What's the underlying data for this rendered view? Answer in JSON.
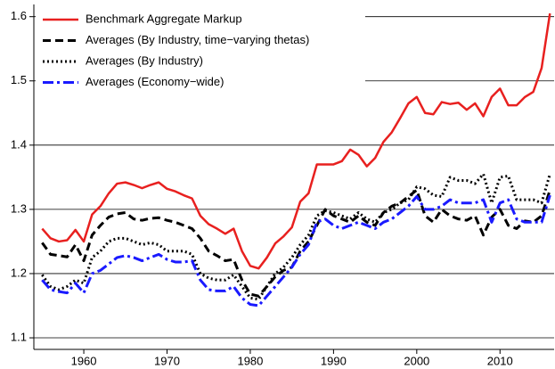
{
  "chart_data": {
    "type": "line",
    "x": [
      1955,
      1956,
      1957,
      1958,
      1959,
      1960,
      1961,
      1962,
      1963,
      1964,
      1965,
      1966,
      1967,
      1968,
      1969,
      1970,
      1971,
      1972,
      1973,
      1974,
      1975,
      1976,
      1977,
      1978,
      1979,
      1980,
      1981,
      1982,
      1983,
      1984,
      1985,
      1986,
      1987,
      1988,
      1989,
      1990,
      1991,
      1992,
      1993,
      1994,
      1995,
      1996,
      1997,
      1998,
      1999,
      2000,
      2001,
      2002,
      2003,
      2004,
      2005,
      2006,
      2007,
      2008,
      2009,
      2010,
      2011,
      2012,
      2013,
      2014,
      2015,
      2016
    ],
    "series": [
      {
        "name": "Benchmark Aggregate Markup",
        "color": "#e8201f",
        "dash": "solid",
        "values": [
          1.27,
          1.255,
          1.25,
          1.252,
          1.268,
          1.25,
          1.292,
          1.305,
          1.325,
          1.34,
          1.342,
          1.338,
          1.333,
          1.338,
          1.342,
          1.332,
          1.328,
          1.322,
          1.317,
          1.29,
          1.277,
          1.27,
          1.262,
          1.27,
          1.235,
          1.212,
          1.208,
          1.225,
          1.247,
          1.258,
          1.272,
          1.312,
          1.325,
          1.37,
          1.37,
          1.37,
          1.375,
          1.393,
          1.385,
          1.367,
          1.38,
          1.405,
          1.42,
          1.442,
          1.465,
          1.475,
          1.45,
          1.448,
          1.467,
          1.464,
          1.466,
          1.455,
          1.465,
          1.445,
          1.475,
          1.488,
          1.462,
          1.462,
          1.475,
          1.483,
          1.52,
          1.605
        ]
      },
      {
        "name": "Averages (By Industry, time−varying thetas)",
        "color": "#000000",
        "dash": "dashed",
        "values": [
          1.248,
          1.23,
          1.228,
          1.226,
          1.245,
          1.22,
          1.26,
          1.275,
          1.288,
          1.293,
          1.295,
          1.285,
          1.283,
          1.286,
          1.287,
          1.283,
          1.28,
          1.275,
          1.27,
          1.255,
          1.235,
          1.228,
          1.22,
          1.222,
          1.19,
          1.168,
          1.165,
          1.18,
          1.195,
          1.205,
          1.21,
          1.235,
          1.25,
          1.275,
          1.3,
          1.29,
          1.285,
          1.28,
          1.29,
          1.28,
          1.275,
          1.295,
          1.305,
          1.31,
          1.32,
          1.33,
          1.29,
          1.28,
          1.3,
          1.29,
          1.285,
          1.283,
          1.29,
          1.26,
          1.288,
          1.3,
          1.275,
          1.27,
          1.282,
          1.28,
          1.29,
          1.33
        ]
      },
      {
        "name": "Averages (By Industry)",
        "color": "#000000",
        "dash": "dotted",
        "values": [
          1.198,
          1.18,
          1.175,
          1.18,
          1.19,
          1.185,
          1.225,
          1.235,
          1.25,
          1.255,
          1.255,
          1.25,
          1.245,
          1.248,
          1.245,
          1.235,
          1.235,
          1.235,
          1.23,
          1.2,
          1.193,
          1.19,
          1.19,
          1.198,
          1.18,
          1.162,
          1.16,
          1.18,
          1.2,
          1.21,
          1.225,
          1.245,
          1.26,
          1.29,
          1.298,
          1.295,
          1.29,
          1.285,
          1.295,
          1.285,
          1.28,
          1.295,
          1.3,
          1.31,
          1.315,
          1.335,
          1.332,
          1.322,
          1.32,
          1.35,
          1.345,
          1.345,
          1.34,
          1.355,
          1.31,
          1.35,
          1.352,
          1.315,
          1.315,
          1.315,
          1.31,
          1.355
        ]
      },
      {
        "name": "Averages (Economy−wide)",
        "color": "#1a1aff",
        "dash": "dashdot",
        "values": [
          1.19,
          1.175,
          1.172,
          1.17,
          1.185,
          1.17,
          1.2,
          1.205,
          1.215,
          1.225,
          1.228,
          1.225,
          1.22,
          1.225,
          1.23,
          1.222,
          1.218,
          1.218,
          1.22,
          1.19,
          1.175,
          1.173,
          1.173,
          1.18,
          1.162,
          1.152,
          1.15,
          1.165,
          1.18,
          1.195,
          1.21,
          1.23,
          1.245,
          1.28,
          1.285,
          1.275,
          1.27,
          1.275,
          1.28,
          1.275,
          1.27,
          1.28,
          1.285,
          1.295,
          1.305,
          1.32,
          1.3,
          1.3,
          1.305,
          1.315,
          1.31,
          1.31,
          1.31,
          1.315,
          1.28,
          1.31,
          1.315,
          1.285,
          1.28,
          1.28,
          1.28,
          1.322
        ]
      }
    ],
    "xlim": [
      1954,
      2016.5
    ],
    "xticks": [
      1960,
      1970,
      1980,
      1990,
      2000,
      2010
    ],
    "ylim": [
      1.082,
      1.619
    ],
    "yticks": [
      1.1,
      1.2,
      1.3,
      1.4,
      1.5,
      1.6
    ],
    "grid": true,
    "legend": "upper-left"
  }
}
